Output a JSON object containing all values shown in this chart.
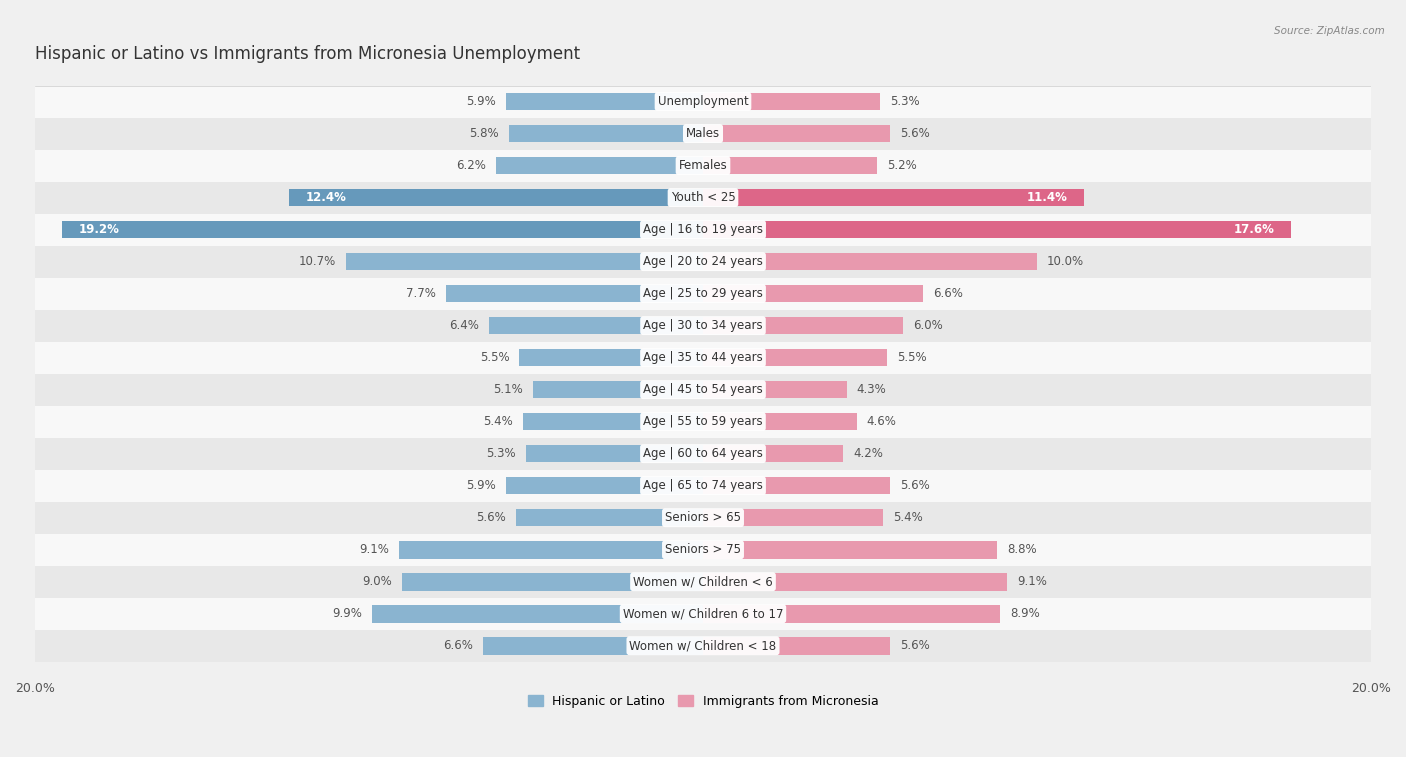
{
  "title": "Hispanic or Latino vs Immigrants from Micronesia Unemployment",
  "source": "Source: ZipAtlas.com",
  "categories": [
    "Unemployment",
    "Males",
    "Females",
    "Youth < 25",
    "Age | 16 to 19 years",
    "Age | 20 to 24 years",
    "Age | 25 to 29 years",
    "Age | 30 to 34 years",
    "Age | 35 to 44 years",
    "Age | 45 to 54 years",
    "Age | 55 to 59 years",
    "Age | 60 to 64 years",
    "Age | 65 to 74 years",
    "Seniors > 65",
    "Seniors > 75",
    "Women w/ Children < 6",
    "Women w/ Children 6 to 17",
    "Women w/ Children < 18"
  ],
  "hispanic_values": [
    5.9,
    5.8,
    6.2,
    12.4,
    19.2,
    10.7,
    7.7,
    6.4,
    5.5,
    5.1,
    5.4,
    5.3,
    5.9,
    5.6,
    9.1,
    9.0,
    9.9,
    6.6
  ],
  "micronesia_values": [
    5.3,
    5.6,
    5.2,
    11.4,
    17.6,
    10.0,
    6.6,
    6.0,
    5.5,
    4.3,
    4.6,
    4.2,
    5.6,
    5.4,
    8.8,
    9.1,
    8.9,
    5.6
  ],
  "hispanic_color": "#8ab4d0",
  "micronesia_color": "#e899ae",
  "highlight_hispanic_color": "#6699bb",
  "highlight_micronesia_color": "#dd6688",
  "background_color": "#f0f0f0",
  "row_odd_color": "#f8f8f8",
  "row_even_color": "#e8e8e8",
  "xlim": 20.0,
  "bar_height": 0.55,
  "legend_label_hispanic": "Hispanic or Latino",
  "legend_label_micronesia": "Immigrants from Micronesia",
  "highlight_indices": [
    3,
    4
  ],
  "title_fontsize": 12,
  "label_fontsize": 8.5,
  "value_fontsize": 8.5
}
